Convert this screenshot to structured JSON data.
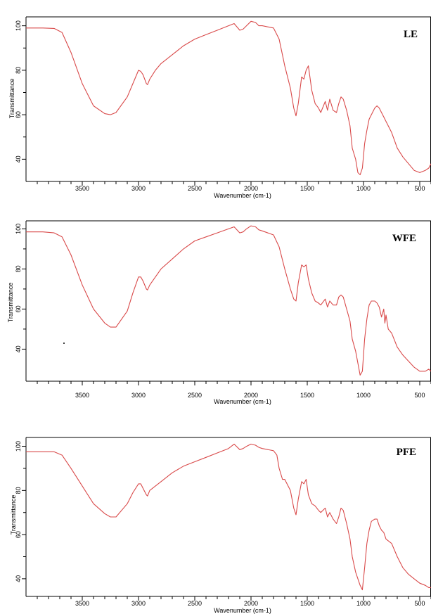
{
  "chart_data": [
    {
      "type": "line",
      "panel_label": "LE",
      "xlabel": "Wavenumber (cm-1)",
      "ylabel": "Transmittance",
      "xlim": [
        4000,
        400
      ],
      "ylim": [
        30,
        104
      ],
      "x_ticks": [
        3500,
        3000,
        2500,
        2000,
        1500,
        1000,
        500
      ],
      "y_ticks": [
        100,
        80,
        60,
        40
      ],
      "color": "#d94a4a",
      "x": [
        4000,
        3850,
        3750,
        3680,
        3600,
        3500,
        3400,
        3300,
        3250,
        3200,
        3100,
        3050,
        3000,
        2980,
        2960,
        2930,
        2920,
        2900,
        2850,
        2800,
        2700,
        2600,
        2500,
        2400,
        2300,
        2200,
        2150,
        2100,
        2070,
        2040,
        2000,
        1960,
        1930,
        1900,
        1800,
        1750,
        1700,
        1650,
        1620,
        1600,
        1580,
        1550,
        1530,
        1510,
        1490,
        1460,
        1430,
        1400,
        1380,
        1340,
        1320,
        1300,
        1270,
        1240,
        1220,
        1200,
        1180,
        1150,
        1120,
        1100,
        1070,
        1050,
        1030,
        1010,
        990,
        970,
        950,
        930,
        900,
        880,
        860,
        840,
        820,
        800,
        750,
        700,
        650,
        600,
        550,
        500,
        450,
        420,
        400
      ],
      "y": [
        99,
        99,
        98.8,
        97,
        88,
        74,
        64,
        60.5,
        60,
        61,
        68,
        74,
        80,
        79.5,
        78,
        74,
        73.5,
        76,
        80,
        83,
        87,
        91,
        94,
        96,
        98,
        100,
        101,
        98,
        98.5,
        100,
        102,
        101.5,
        100,
        100,
        99,
        94,
        82,
        72,
        63,
        59.5,
        65,
        77,
        76,
        80,
        82,
        71,
        65,
        63,
        61,
        66,
        62,
        67,
        62,
        61,
        65,
        68,
        67,
        62,
        55,
        45,
        40,
        34,
        33,
        36,
        47,
        53,
        58,
        60,
        63,
        64,
        63,
        61,
        59,
        57,
        52,
        45,
        41,
        38,
        35,
        34,
        35,
        36,
        38
      ]
    },
    {
      "type": "line",
      "panel_label": "WFE",
      "xlabel": "Wavenumber (cm-1)",
      "ylabel": "Transmittance",
      "xlim": [
        4000,
        400
      ],
      "ylim": [
        24,
        104
      ],
      "x_ticks": [
        3500,
        3000,
        2500,
        2000,
        1500,
        1000,
        500
      ],
      "y_ticks": [
        100,
        80,
        60,
        40
      ],
      "color": "#d94a4a",
      "x": [
        4000,
        3850,
        3750,
        3680,
        3600,
        3500,
        3400,
        3300,
        3250,
        3200,
        3100,
        3050,
        3000,
        2980,
        2960,
        2930,
        2920,
        2900,
        2850,
        2800,
        2700,
        2600,
        2500,
        2400,
        2300,
        2200,
        2150,
        2100,
        2070,
        2040,
        2000,
        1960,
        1930,
        1900,
        1800,
        1750,
        1700,
        1650,
        1620,
        1600,
        1580,
        1550,
        1530,
        1510,
        1490,
        1460,
        1430,
        1400,
        1380,
        1340,
        1320,
        1300,
        1270,
        1240,
        1220,
        1200,
        1180,
        1150,
        1120,
        1100,
        1070,
        1050,
        1030,
        1010,
        990,
        970,
        950,
        930,
        900,
        880,
        860,
        840,
        820,
        810,
        800,
        780,
        750,
        700,
        650,
        600,
        550,
        500,
        450,
        420,
        400
      ],
      "y": [
        98.5,
        98.5,
        98,
        96,
        87,
        72,
        60,
        53,
        51,
        51,
        59,
        68,
        76,
        76,
        74,
        70,
        69.5,
        72,
        76,
        80,
        85,
        90,
        94,
        96,
        98,
        100,
        101,
        98,
        98.5,
        100,
        101.5,
        101,
        99.5,
        99,
        97,
        91,
        80,
        70,
        65,
        64,
        73,
        82,
        81,
        82,
        75,
        68,
        64,
        63,
        62,
        65,
        61,
        64,
        62,
        62,
        66,
        67,
        66,
        60,
        54,
        45,
        39,
        33,
        27,
        29,
        45,
        55,
        62,
        64,
        64,
        63,
        61,
        56,
        60,
        53,
        57,
        50,
        48,
        41,
        37,
        34,
        31,
        29,
        29,
        30,
        29
      ]
    },
    {
      "type": "line",
      "panel_label": "PFE",
      "xlabel": "Wavenumber (cm-1)",
      "ylabel": "Transmittance",
      "xlim": [
        4000,
        400
      ],
      "ylim": [
        32,
        104
      ],
      "x_ticks": [
        3500,
        3000,
        2500,
        2000,
        1500,
        1000,
        500
      ],
      "y_ticks": [
        100,
        80,
        60,
        40
      ],
      "color": "#d94a4a",
      "x": [
        4000,
        3850,
        3750,
        3680,
        3600,
        3500,
        3400,
        3300,
        3250,
        3200,
        3100,
        3050,
        3000,
        2980,
        2960,
        2930,
        2920,
        2900,
        2850,
        2800,
        2700,
        2600,
        2500,
        2400,
        2300,
        2200,
        2150,
        2100,
        2070,
        2040,
        2000,
        1960,
        1930,
        1900,
        1800,
        1770,
        1750,
        1720,
        1700,
        1650,
        1620,
        1600,
        1580,
        1550,
        1530,
        1510,
        1490,
        1460,
        1430,
        1400,
        1380,
        1340,
        1320,
        1300,
        1270,
        1240,
        1220,
        1200,
        1180,
        1150,
        1120,
        1100,
        1070,
        1050,
        1030,
        1010,
        990,
        970,
        950,
        930,
        900,
        880,
        860,
        840,
        820,
        800,
        750,
        700,
        650,
        600,
        550,
        500,
        450,
        420,
        400
      ],
      "y": [
        97.5,
        97.5,
        97.5,
        96,
        90,
        82,
        74,
        69.5,
        68,
        68,
        74,
        79,
        83,
        83,
        81,
        78,
        77.5,
        80,
        82,
        84,
        88,
        91,
        93,
        95,
        97,
        99,
        101,
        98.5,
        99,
        100,
        101,
        100.5,
        99.5,
        99,
        98,
        96,
        90,
        85,
        85,
        80,
        72,
        69,
        76,
        84,
        83,
        85,
        78,
        74,
        73,
        71,
        70,
        72,
        68,
        70,
        67,
        65,
        68,
        72,
        71,
        65,
        58,
        50,
        43,
        40,
        37,
        35,
        45,
        56,
        62,
        66,
        67,
        67,
        64,
        62,
        61,
        58,
        56,
        50,
        45,
        42,
        40,
        38,
        37,
        36,
        36
      ]
    }
  ]
}
